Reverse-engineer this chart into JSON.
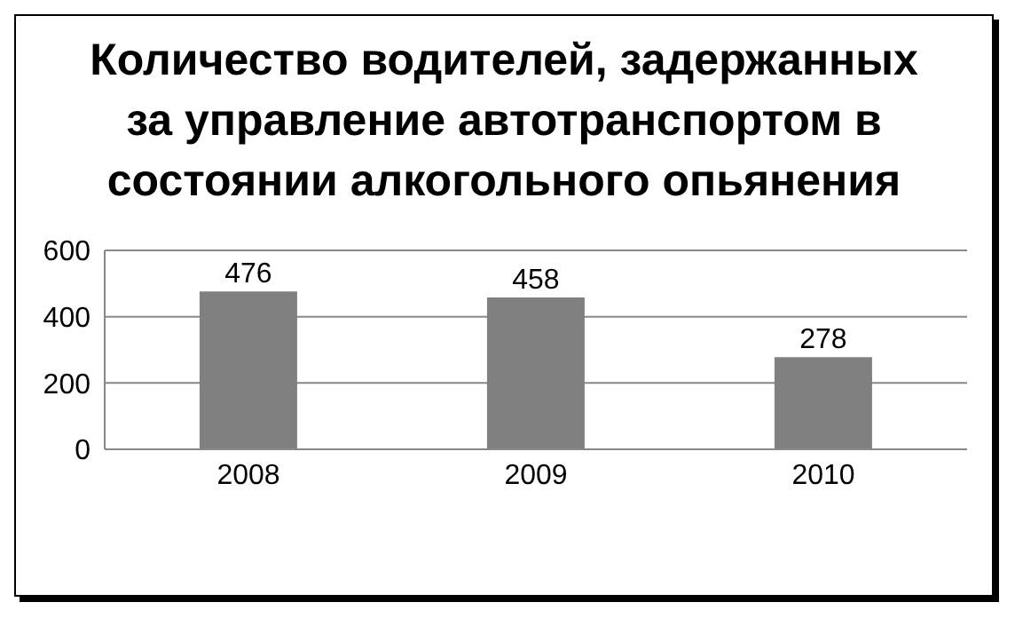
{
  "chart_data": {
    "type": "bar",
    "title": "Количество водителей, задержанных за управление автотранспортом в состоянии алкогольного опьянения",
    "categories": [
      "2008",
      "2009",
      "2010"
    ],
    "values": [
      476,
      458,
      278
    ],
    "color": "#808080",
    "ylim": [
      0,
      600
    ],
    "yticks": [
      0,
      200,
      400,
      600
    ],
    "grid": "y",
    "data_labels": true
  }
}
